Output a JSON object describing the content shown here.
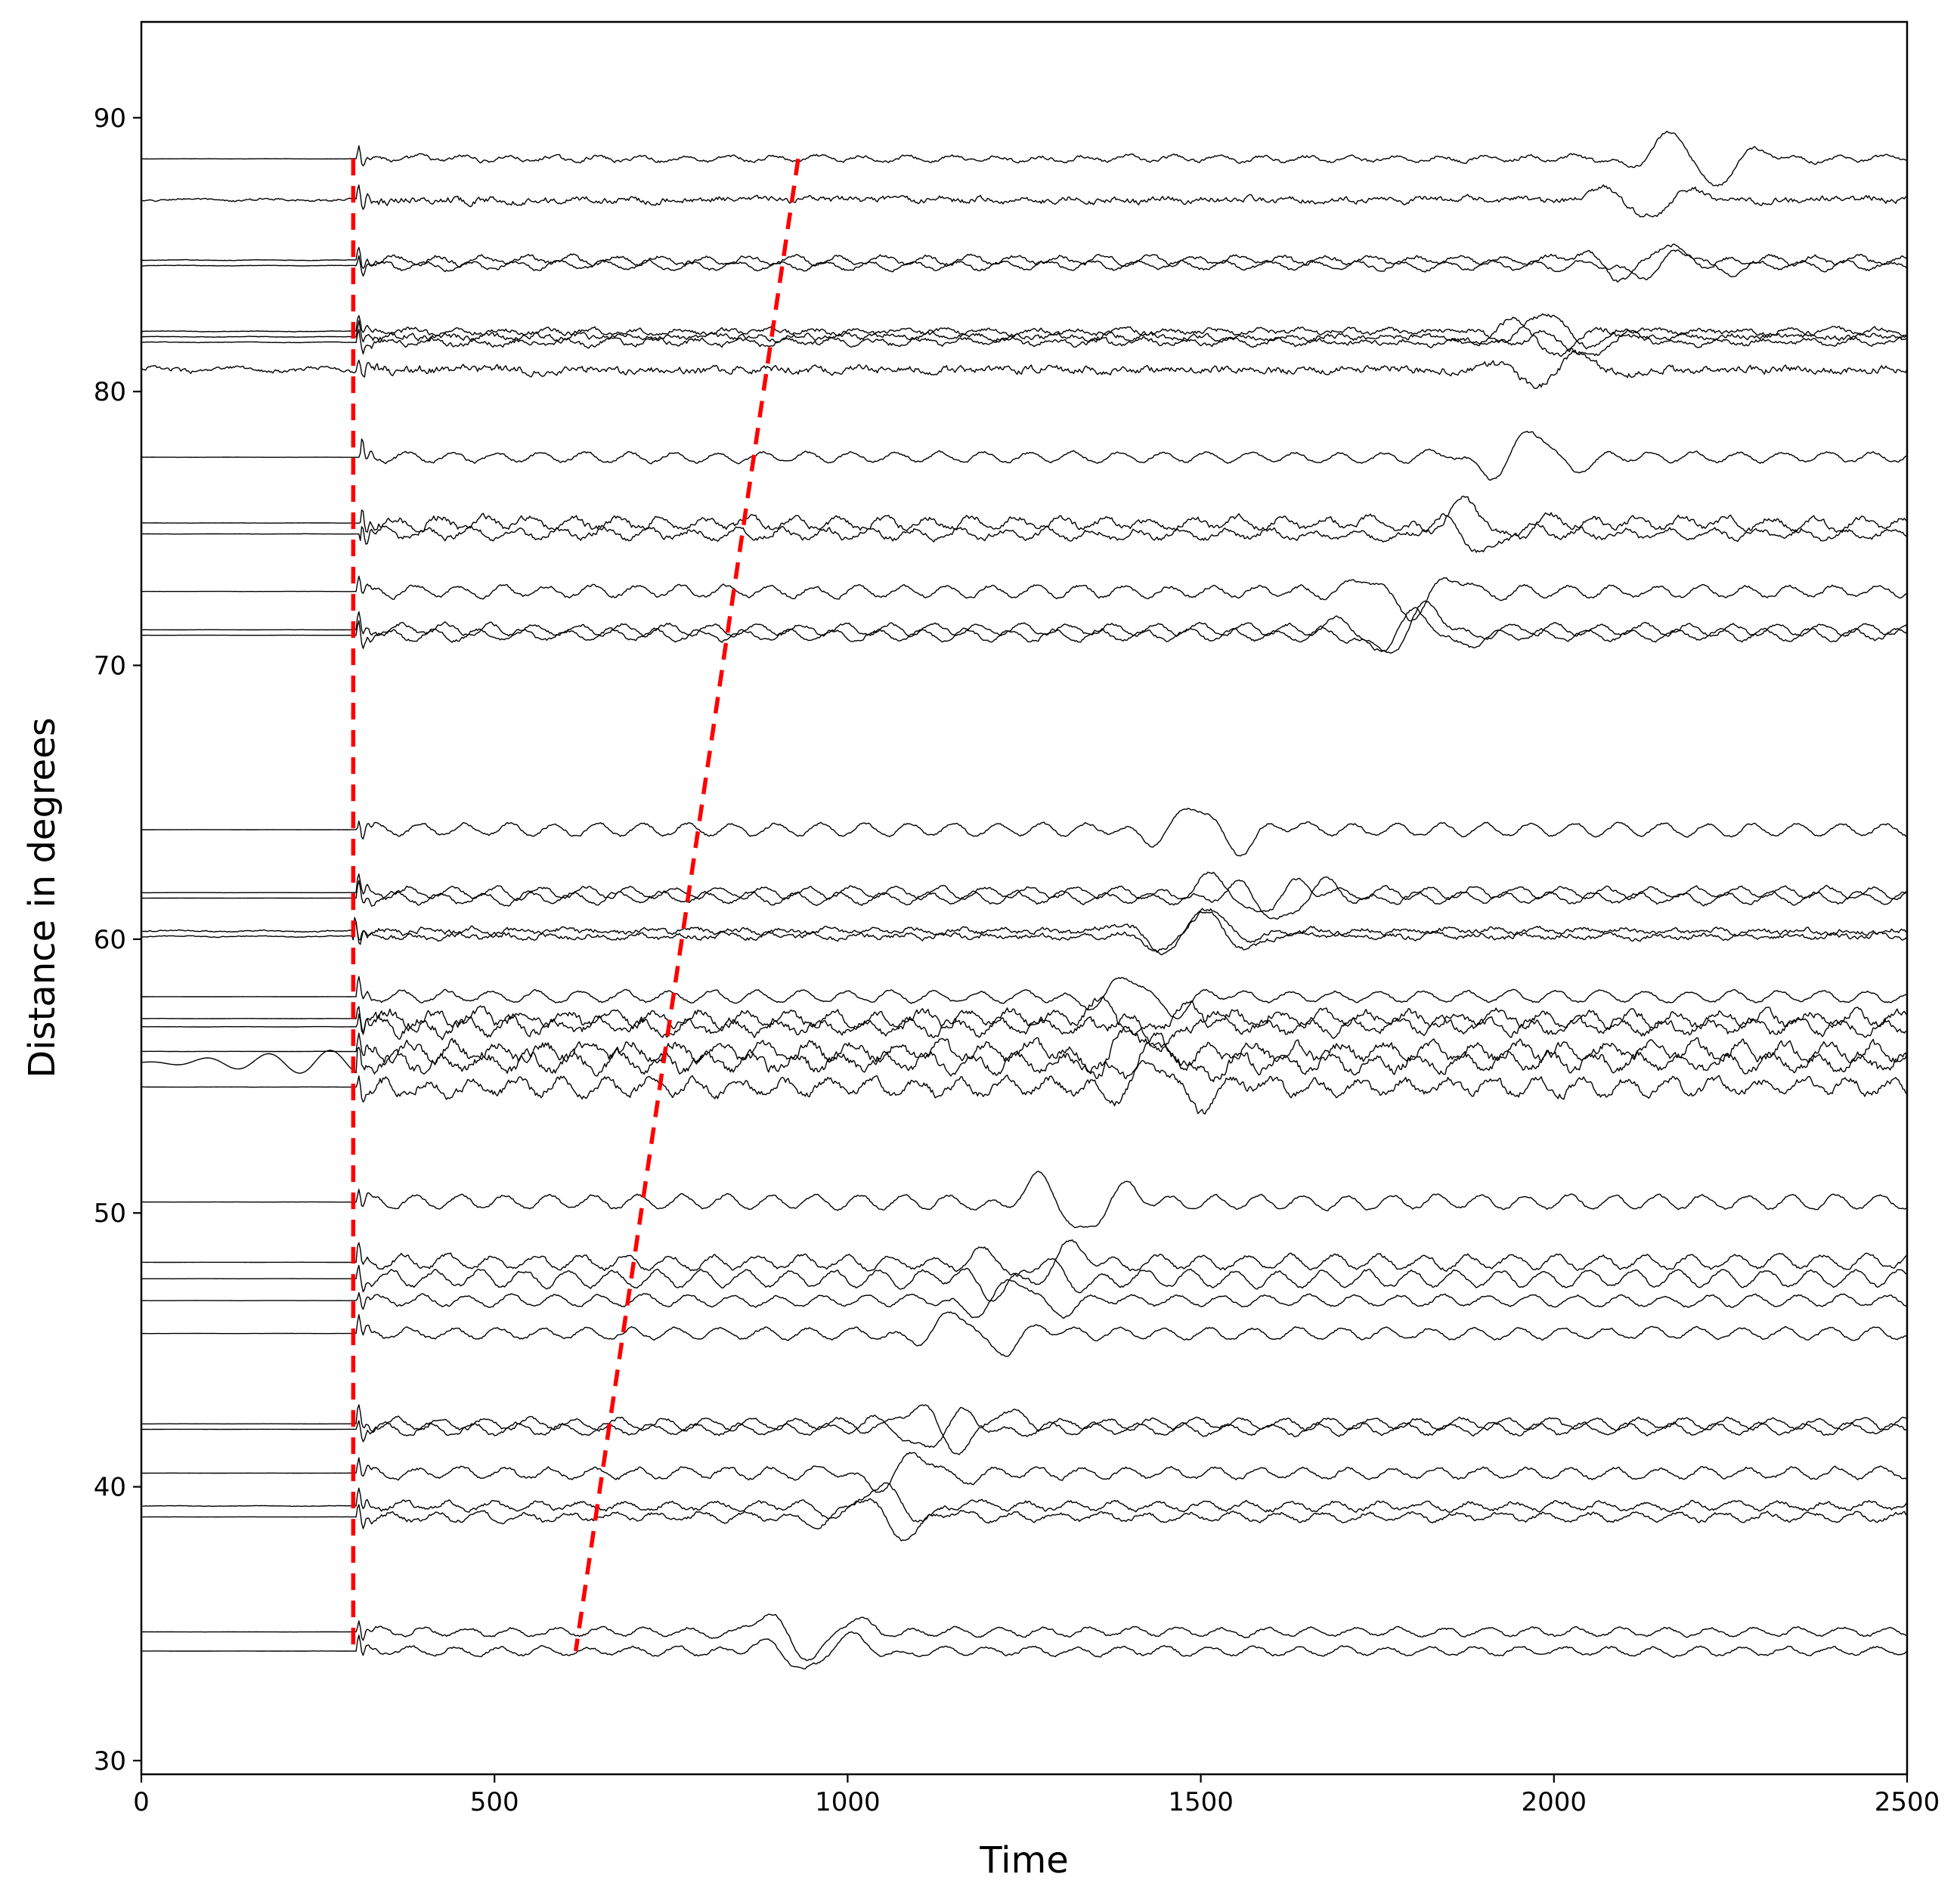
{
  "chart_data": {
    "type": "line",
    "title": "",
    "xlabel": "Time",
    "ylabel": "Distance in degrees",
    "xlim": [
      0,
      2500
    ],
    "ylim": [
      29.5,
      93.5
    ],
    "xticks": [
      0,
      500,
      1000,
      1500,
      2000,
      2500
    ],
    "xtick_labels": [
      "0",
      "500",
      "1000",
      "1500",
      "2000",
      "2500"
    ],
    "yticks": [
      30,
      40,
      50,
      60,
      70,
      80,
      90
    ],
    "ytick_labels": [
      "30",
      "40",
      "50",
      "60",
      "70",
      "80",
      "90"
    ],
    "grid": false,
    "legend": "none",
    "trace_color": "#000000",
    "marker_color": "#ff0000",
    "traces": [
      {
        "distance": 88.5,
        "p_arrival": 305,
        "noise": 0.25,
        "pre": 0.02,
        "surface": 2200,
        "surf_amp": 2.0,
        "lp": 0.2
      },
      {
        "distance": 87.0,
        "p_arrival": 305,
        "noise": 0.45,
        "pre": 0.25,
        "surface": 2130,
        "surf_amp": 1.2,
        "lp": 0.1
      },
      {
        "distance": 84.8,
        "p_arrival": 305,
        "noise": 0.3,
        "pre": 0.05,
        "surface": 2120,
        "surf_amp": 1.3,
        "lp": 0.3
      },
      {
        "distance": 84.6,
        "p_arrival": 305,
        "noise": 0.25,
        "pre": 0.05,
        "surface": 2170,
        "surf_amp": 1.0,
        "lp": 0.3
      },
      {
        "distance": 82.2,
        "p_arrival": 305,
        "noise": 0.35,
        "pre": 0.05,
        "surface": 2000,
        "surf_amp": 1.3,
        "lp": 0.15
      },
      {
        "distance": 82.0,
        "p_arrival": 305,
        "noise": 0.4,
        "pre": 0.05,
        "surface": 1980,
        "surf_amp": 1.4,
        "lp": 0.1
      },
      {
        "distance": 81.8,
        "p_arrival": 305,
        "noise": 0.35,
        "pre": 0.05,
        "surface": 2050,
        "surf_amp": 1.0,
        "lp": 0.2
      },
      {
        "distance": 80.8,
        "p_arrival": 305,
        "noise": 0.55,
        "pre": 0.45,
        "surface": 2000,
        "surf_amp": 1.2,
        "lp": 0.05
      },
      {
        "distance": 77.6,
        "p_arrival": 310,
        "noise": 0.2,
        "pre": 0.01,
        "surface": 1960,
        "surf_amp": 1.8,
        "lp": 0.35
      },
      {
        "distance": 75.2,
        "p_arrival": 310,
        "noise": 0.45,
        "pre": 0.02,
        "surface": 1890,
        "surf_amp": 1.4,
        "lp": 0.4
      },
      {
        "distance": 74.8,
        "p_arrival": 310,
        "noise": 0.4,
        "pre": 0.02,
        "surface": 1880,
        "surf_amp": 1.3,
        "lp": 0.35
      },
      {
        "distance": 72.7,
        "p_arrival": 305,
        "noise": 0.25,
        "pre": 0.01,
        "surface": 1800,
        "surf_amp": 1.6,
        "lp": 0.4
      },
      {
        "distance": 71.3,
        "p_arrival": 305,
        "noise": 0.25,
        "pre": 0.01,
        "surface": 1790,
        "surf_amp": 1.8,
        "lp": 0.4
      },
      {
        "distance": 71.1,
        "p_arrival": 305,
        "noise": 0.25,
        "pre": 0.01,
        "surface": 1800,
        "surf_amp": 1.5,
        "lp": 0.4
      },
      {
        "distance": 64.0,
        "p_arrival": 305,
        "noise": 0.2,
        "pre": 0.01,
        "surface": 1510,
        "surf_amp": 1.8,
        "lp": 0.45
      },
      {
        "distance": 61.7,
        "p_arrival": 305,
        "noise": 0.25,
        "pre": 0.01,
        "surface": 1560,
        "surf_amp": 1.5,
        "lp": 0.4
      },
      {
        "distance": 61.5,
        "p_arrival": 305,
        "noise": 0.25,
        "pre": 0.01,
        "surface": 1620,
        "surf_amp": 1.6,
        "lp": 0.4
      },
      {
        "distance": 60.3,
        "p_arrival": 300,
        "noise": 0.35,
        "pre": 0.15,
        "surface": 1480,
        "surf_amp": 1.8,
        "lp": 0.15
      },
      {
        "distance": 60.1,
        "p_arrival": 300,
        "noise": 0.35,
        "pre": 0.1,
        "surface": 1500,
        "surf_amp": 1.6,
        "lp": 0.15
      },
      {
        "distance": 57.9,
        "p_arrival": 305,
        "noise": 0.2,
        "pre": 0.01,
        "surface": 1420,
        "surf_amp": 1.4,
        "lp": 0.4
      },
      {
        "distance": 57.1,
        "p_arrival": 305,
        "noise": 0.6,
        "pre": 0.02,
        "surface": 1400,
        "surf_amp": 1.2,
        "lp": 0.5
      },
      {
        "distance": 56.8,
        "p_arrival": 305,
        "noise": 0.6,
        "pre": 0.02,
        "surface": 1460,
        "surf_amp": 1.2,
        "lp": 0.5
      },
      {
        "distance": 55.9,
        "p_arrival": 305,
        "noise": 0.7,
        "pre": 0.02,
        "surface": 1380,
        "surf_amp": 1.5,
        "lp": 0.55
      },
      {
        "distance": 55.5,
        "p_arrival": 305,
        "noise": 0.7,
        "pre": 0.9,
        "surface": 1440,
        "surf_amp": 1.5,
        "lp": 0.55
      },
      {
        "distance": 54.6,
        "p_arrival": 305,
        "noise": 0.6,
        "pre": 0.02,
        "surface": 1460,
        "surf_amp": 1.8,
        "lp": 0.55
      },
      {
        "distance": 50.4,
        "p_arrival": 305,
        "noise": 0.2,
        "pre": 0.01,
        "surface": 1320,
        "surf_amp": 2.2,
        "lp": 0.5
      },
      {
        "distance": 48.2,
        "p_arrival": 305,
        "noise": 0.3,
        "pre": 0.01,
        "surface": 1270,
        "surf_amp": 1.6,
        "lp": 0.5
      },
      {
        "distance": 47.6,
        "p_arrival": 305,
        "noise": 0.25,
        "pre": 0.01,
        "surface": 1250,
        "surf_amp": 1.3,
        "lp": 0.6
      },
      {
        "distance": 46.8,
        "p_arrival": 305,
        "noise": 0.2,
        "pre": 0.01,
        "surface": 1240,
        "surf_amp": 1.4,
        "lp": 0.4
      },
      {
        "distance": 45.6,
        "p_arrival": 305,
        "noise": 0.2,
        "pre": 0.01,
        "surface": 1180,
        "surf_amp": 1.5,
        "lp": 0.4
      },
      {
        "distance": 42.3,
        "p_arrival": 305,
        "noise": 0.25,
        "pre": 0.01,
        "surface": 1150,
        "surf_amp": 1.8,
        "lp": 0.4
      },
      {
        "distance": 42.1,
        "p_arrival": 305,
        "noise": 0.25,
        "pre": 0.01,
        "surface": 1120,
        "surf_amp": 1.4,
        "lp": 0.4
      },
      {
        "distance": 40.5,
        "p_arrival": 305,
        "noise": 0.25,
        "pre": 0.01,
        "surface": 1080,
        "surf_amp": 1.3,
        "lp": 0.4
      },
      {
        "distance": 39.3,
        "p_arrival": 305,
        "noise": 0.3,
        "pre": 0.05,
        "surface": 1050,
        "surf_amp": 1.4,
        "lp": 0.3
      },
      {
        "distance": 38.9,
        "p_arrival": 305,
        "noise": 0.3,
        "pre": 0.01,
        "surface": 1050,
        "surf_amp": 1.5,
        "lp": 0.3
      },
      {
        "distance": 34.7,
        "p_arrival": 305,
        "noise": 0.2,
        "pre": 0.01,
        "surface": 940,
        "surf_amp": 1.8,
        "lp": 0.3
      },
      {
        "distance": 34.0,
        "p_arrival": 305,
        "noise": 0.2,
        "pre": 0.01,
        "surface": 960,
        "surf_amp": 1.4,
        "lp": 0.3
      }
    ],
    "arrival_lines": [
      {
        "points": [
          [
            300,
            88.5
          ],
          [
            300,
            34.0
          ]
        ],
        "style": "dashed"
      },
      {
        "points": [
          [
            930,
            88.5
          ],
          [
            615,
            34.0
          ]
        ],
        "style": "dashed"
      }
    ]
  }
}
